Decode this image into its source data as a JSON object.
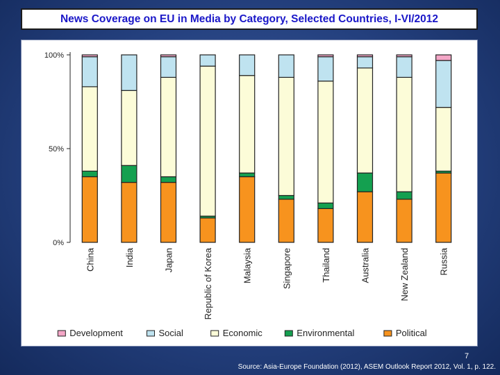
{
  "slide": {
    "title": "News Coverage on EU in Media by Category, Selected Countries, I-VI/2012",
    "page_number": "7",
    "source": "Source: Asia-Europe Foundation (2012), ASEM Outlook Report 2012, Vol. 1, p. 122."
  },
  "chart_data": {
    "type": "bar",
    "stacked": true,
    "title": "",
    "xlabel": "",
    "ylabel": "",
    "ylim": [
      0,
      100
    ],
    "y_ticks": [
      "0%",
      "50%",
      "100%"
    ],
    "legend_position": "bottom",
    "categories": [
      "China",
      "India",
      "Japan",
      "Republic of Korea",
      "Malaysia",
      "Singapore",
      "Thailand",
      "Australia",
      "New Zealand",
      "Russia"
    ],
    "series": [
      {
        "name": "Political",
        "color": "#f7931e",
        "values": [
          35,
          32,
          32,
          13,
          35,
          23,
          18,
          27,
          23,
          37
        ]
      },
      {
        "name": "Environmental",
        "color": "#14a050",
        "values": [
          3,
          9,
          3,
          1,
          2,
          2,
          3,
          10,
          4,
          1
        ]
      },
      {
        "name": "Economic",
        "color": "#fcfcd8",
        "values": [
          45,
          40,
          53,
          80,
          52,
          63,
          65,
          56,
          61,
          34
        ]
      },
      {
        "name": "Social",
        "color": "#bfe3f0",
        "values": [
          16,
          19,
          11,
          6,
          11,
          12,
          13,
          6,
          11,
          25
        ]
      },
      {
        "name": "Development",
        "color": "#f4a7c7",
        "values": [
          1,
          0,
          1,
          0,
          0,
          0,
          1,
          1,
          1,
          3
        ]
      }
    ],
    "legend_order": [
      "Development",
      "Social",
      "Economic",
      "Environmental",
      "Political"
    ]
  }
}
